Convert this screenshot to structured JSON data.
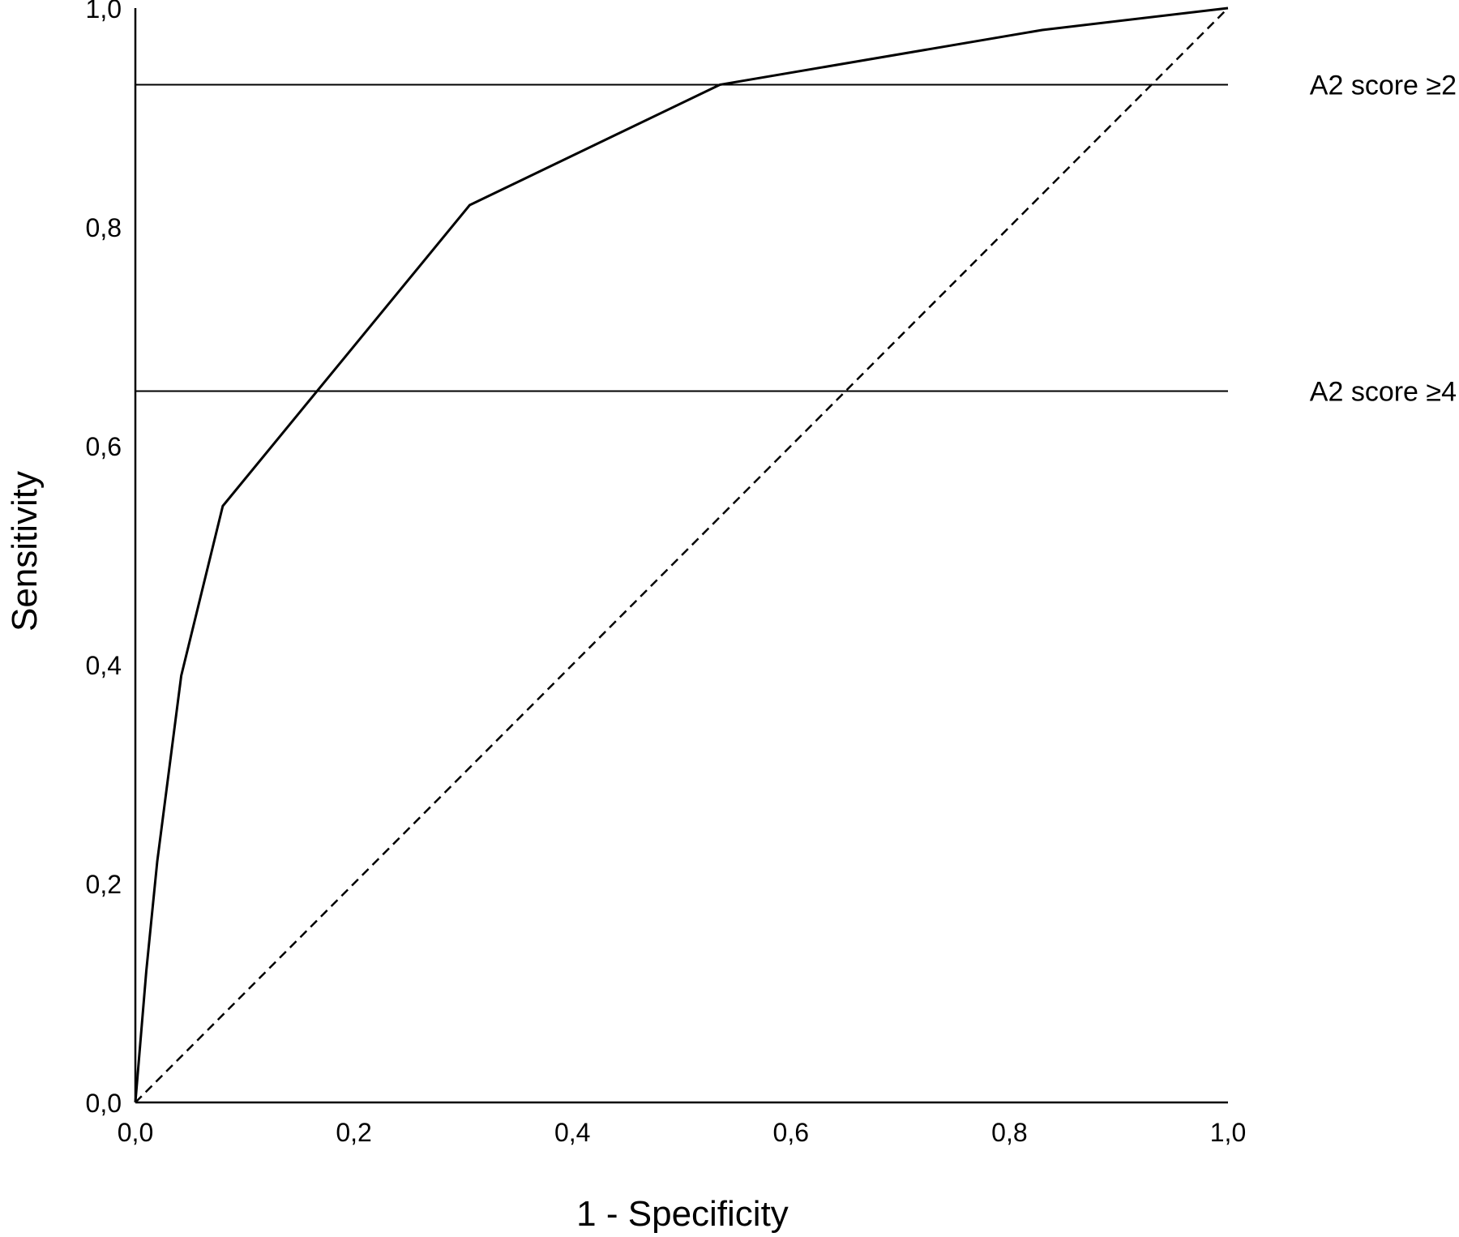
{
  "chart_data": {
    "type": "line",
    "xlabel": "1 - Specificity",
    "ylabel": "Sensitivity",
    "xlim": [
      0,
      1
    ],
    "ylim": [
      0,
      1
    ],
    "x_ticks": [
      "0,0",
      "0,2",
      "0,4",
      "0,6",
      "0,8",
      "1,0"
    ],
    "y_ticks": [
      "0,0",
      "0,2",
      "0,4",
      "0,6",
      "0,8",
      "1,0"
    ],
    "grid": false,
    "series": [
      {
        "style": "solid",
        "x": [
          0,
          0.01,
          0.02,
          0.042,
          0.08,
          0.306,
          0.535,
          0.83,
          1.0
        ],
        "y": [
          0,
          0.12,
          0.22,
          0.39,
          0.545,
          0.82,
          0.93,
          0.98,
          1.0
        ]
      },
      {
        "style": "dashed",
        "x": [
          0,
          1
        ],
        "y": [
          0,
          1
        ]
      }
    ],
    "reference_lines": [
      {
        "y": 0.93,
        "label": "A2 score  ≥2"
      },
      {
        "y": 0.65,
        "label": "A2 score  ≥4"
      }
    ]
  }
}
